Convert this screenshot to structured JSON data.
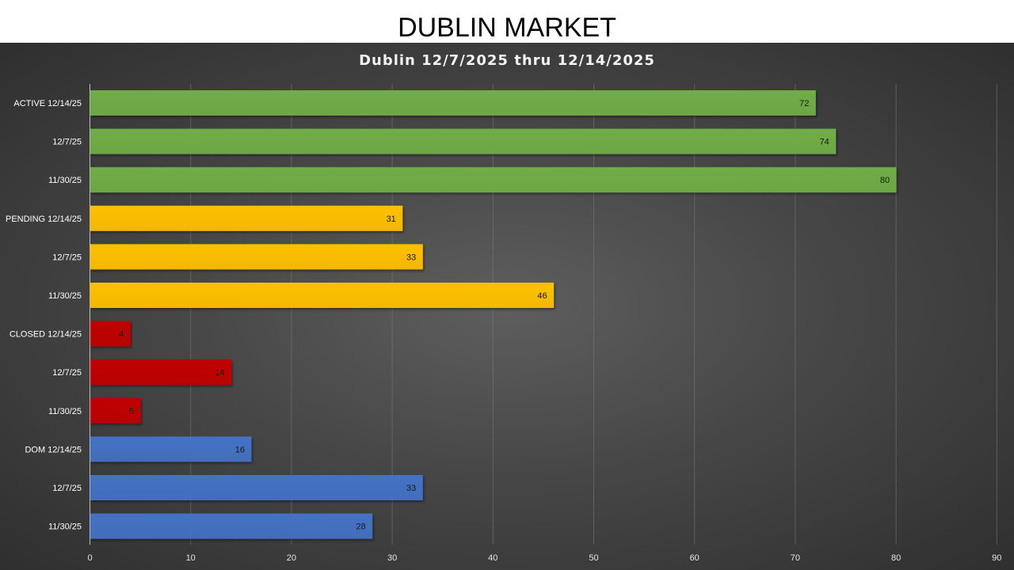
{
  "page": {
    "title": "DUBLIN MARKET"
  },
  "chart_data": {
    "type": "bar",
    "orientation": "horizontal",
    "title": "Dublin 12/7/2025 thru 12/14/2025",
    "xlabel": "",
    "ylabel": "",
    "xlim": [
      0,
      90
    ],
    "x_ticks": [
      0,
      10,
      20,
      30,
      40,
      50,
      60,
      70,
      80,
      90
    ],
    "grid": "vertical",
    "legend": "none",
    "categories": [
      "ACTIVE 12/14/25",
      "12/7/25",
      "11/30/25",
      "PENDING 12/14/25",
      "12/7/25",
      "11/30/25",
      "CLOSED 12/14/25",
      "12/7/25",
      "11/30/25",
      "DOM 12/14/25",
      "12/7/25",
      "11/30/25"
    ],
    "values": [
      72,
      74,
      80,
      31,
      33,
      46,
      4,
      14,
      5,
      16,
      33,
      28
    ],
    "groups": [
      {
        "name": "ACTIVE",
        "color": "#70ad47"
      },
      {
        "name": "PENDING",
        "color": "#ffc000"
      },
      {
        "name": "CLOSED",
        "color": "#c00000"
      },
      {
        "name": "DOM",
        "color": "#4472c4"
      }
    ],
    "bar_colors": [
      "#70ad47",
      "#70ad47",
      "#70ad47",
      "#ffc000",
      "#ffc000",
      "#ffc000",
      "#c00000",
      "#c00000",
      "#c00000",
      "#4472c4",
      "#4472c4",
      "#4472c4"
    ]
  }
}
